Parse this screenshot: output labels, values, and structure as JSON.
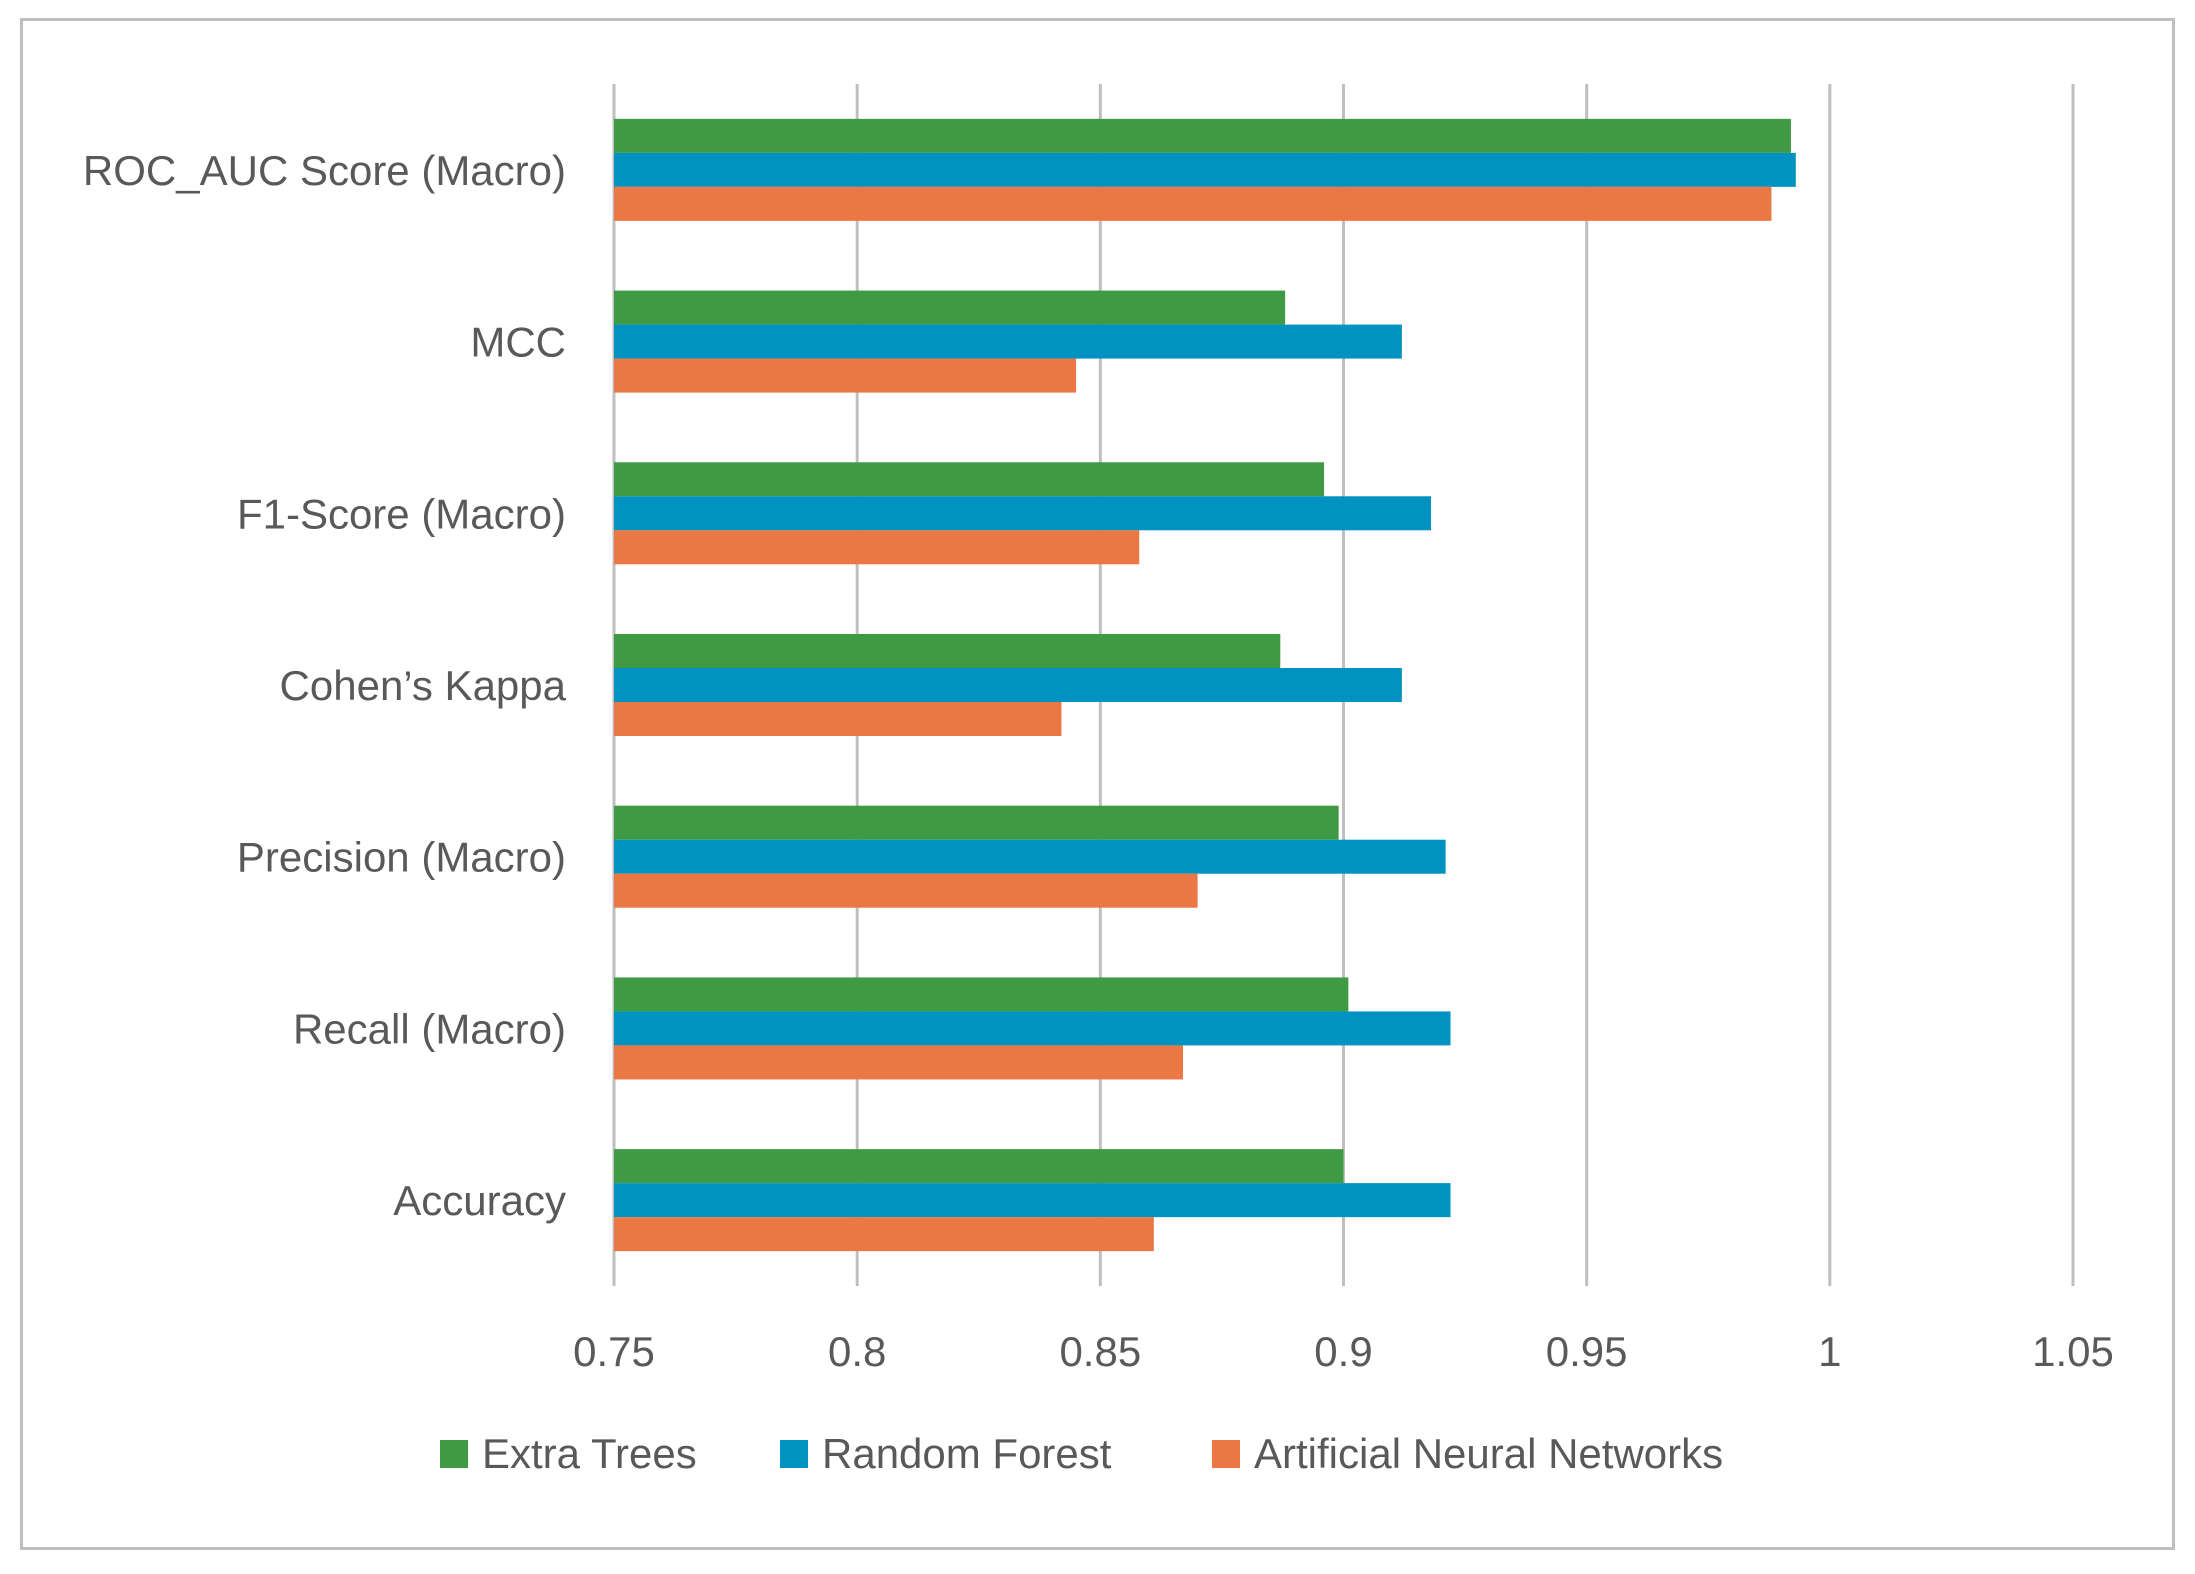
{
  "chart_data": {
    "type": "bar",
    "orientation": "horizontal",
    "title": "",
    "xlabel": "",
    "ylabel": "",
    "xlim": [
      0.75,
      1.05
    ],
    "x_ticks": [
      0.75,
      0.8,
      0.85,
      0.9,
      0.95,
      1,
      1.05
    ],
    "x_tick_labels": [
      "0.75",
      "0.8",
      "0.85",
      "0.9",
      "0.95",
      "1",
      "1.05"
    ],
    "grid": "vertical",
    "legend_position": "bottom",
    "categories": [
      "ROC_AUC Score (Macro)",
      "MCC",
      "F1-Score (Macro)",
      "Cohen’s Kappa",
      "Precision (Macro)",
      "Recall (Macro)",
      "Accuracy"
    ],
    "series": [
      {
        "name": "Extra Trees",
        "color": "#3e9a43",
        "values": [
          0.992,
          0.888,
          0.896,
          0.887,
          0.899,
          0.901,
          0.9
        ]
      },
      {
        "name": "Random Forest",
        "color": "#0092c0",
        "values": [
          0.993,
          0.912,
          0.918,
          0.912,
          0.921,
          0.922,
          0.922
        ]
      },
      {
        "name": "Artificial Neural Networks",
        "color": "#ea7744",
        "values": [
          0.988,
          0.845,
          0.858,
          0.842,
          0.87,
          0.867,
          0.861
        ]
      }
    ]
  }
}
